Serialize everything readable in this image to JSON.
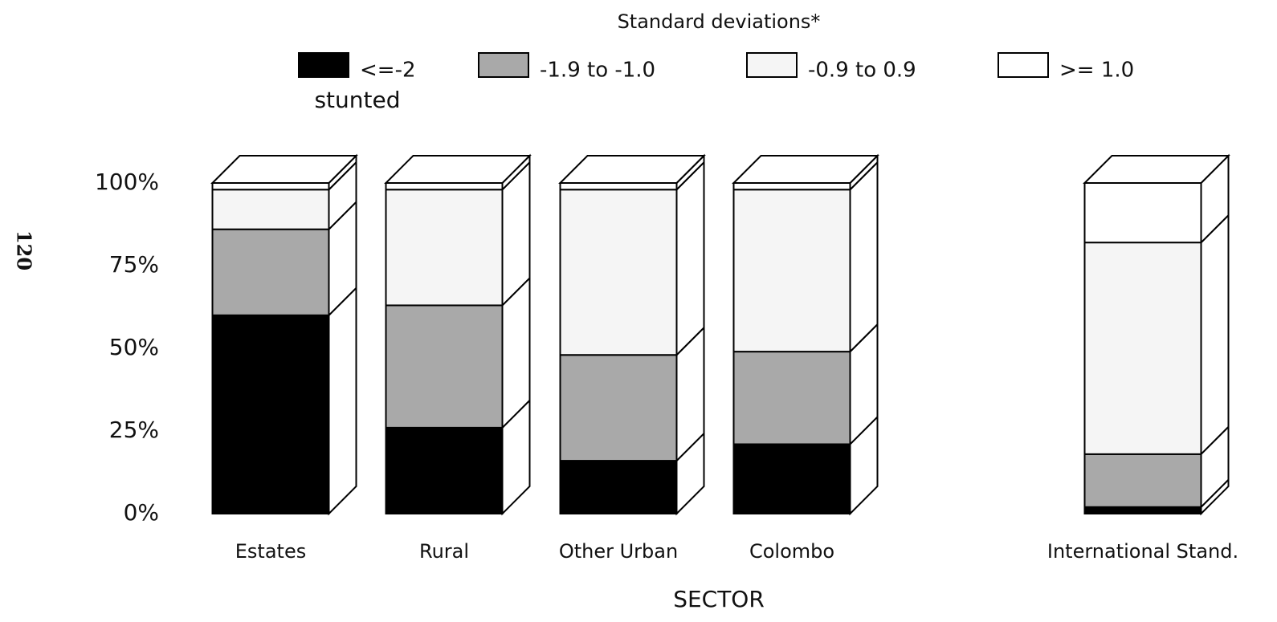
{
  "chart_data": {
    "type": "stacked_bar_3d",
    "title": "Standard deviations*",
    "legend_note": "stunted",
    "x_label": "SECTOR",
    "page_number": "120",
    "categories": [
      "Estates",
      "Rural",
      "Other Urban",
      "Colombo",
      "International Stand."
    ],
    "series": [
      {
        "name": "<=-2",
        "color": "#000000",
        "values": [
          60,
          26,
          16,
          21,
          2
        ]
      },
      {
        "name": "-1.9 to -1.0",
        "color": "#a9a9a9",
        "values": [
          26,
          37,
          32,
          28,
          16
        ]
      },
      {
        "name": "-0.9 to 0.9",
        "color": "#f5f5f5",
        "values": [
          12,
          35,
          50,
          49,
          64
        ]
      },
      {
        "name": ">= 1.0",
        "color": "#ffffff",
        "values": [
          2,
          2,
          2,
          2,
          18
        ]
      }
    ],
    "ylim": [
      0,
      100
    ],
    "yticks": [
      {
        "value": 0,
        "label": "0%"
      },
      {
        "value": 25,
        "label": "25%"
      },
      {
        "value": 50,
        "label": "50%"
      },
      {
        "value": 75,
        "label": "75%"
      },
      {
        "value": 100,
        "label": "100%"
      }
    ]
  }
}
